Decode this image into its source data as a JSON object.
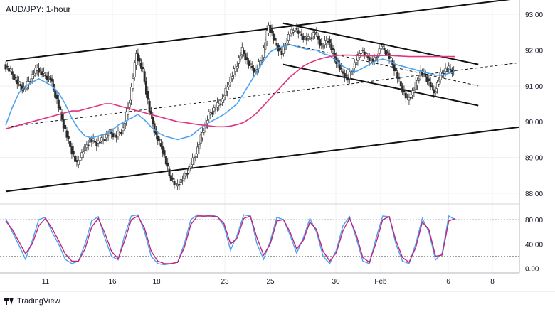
{
  "title": "AUD/JPY: 1-hour",
  "brand": "TradingView",
  "chart_data": {
    "type": "candlestick",
    "price_axis": {
      "labels": [
        "93.00",
        "92.00",
        "91.00",
        "90.00",
        "89.00",
        "88.00"
      ],
      "ticks": [
        93.0,
        92.0,
        91.0,
        90.0,
        89.0,
        88.0
      ],
      "range": [
        87.8,
        93.4
      ]
    },
    "oscillator_axis": {
      "labels": [
        "80.00",
        "40.00",
        "0.00"
      ],
      "ticks": [
        80,
        40,
        0
      ],
      "levels": [
        80,
        20
      ],
      "range": [
        -5,
        100
      ]
    },
    "x_axis": {
      "labels": [
        "11",
        "16",
        "18",
        "23",
        "25",
        "30",
        "Feb",
        "6",
        "8"
      ]
    },
    "colors": {
      "candle": "#2b2b2b",
      "ma_fast": "#4ba3f0",
      "ma_slow": "#e0347b",
      "stoch_k": "#4ba3f0",
      "stoch_d": "#c2247a",
      "trendline": "#111111",
      "grid": "#eef0f3"
    },
    "series": [
      {
        "type": "candles",
        "ohlc_close_path": [
          91.6,
          91.4,
          91.1,
          90.9,
          91.2,
          91.5,
          91.3,
          91.2,
          90.6,
          89.9,
          89.3,
          88.8,
          89.2,
          89.5,
          89.4,
          89.5,
          89.7,
          89.6,
          89.8,
          90.6,
          91.9,
          91.4,
          90.3,
          89.6,
          89.2,
          88.5,
          88.2,
          88.4,
          88.7,
          89.1,
          89.7,
          90.2,
          90.4,
          90.6,
          91.1,
          91.5,
          92.0,
          91.6,
          91.4,
          91.8,
          92.7,
          92.2,
          91.9,
          92.4,
          92.6,
          92.4,
          92.3,
          92.5,
          92.1,
          92.3,
          91.8,
          91.4,
          91.2,
          91.6,
          92.0,
          91.8,
          91.7,
          92.1,
          91.9,
          91.5,
          91.0,
          90.6,
          90.9,
          91.4,
          91.2,
          90.8,
          91.3,
          91.5,
          91.4
        ]
      },
      {
        "type": "ma",
        "role": "ma_fast",
        "values": [
          89.9,
          90.4,
          90.8,
          91.0,
          91.1,
          91.2,
          91.1,
          91.0,
          90.8,
          90.5,
          90.1,
          89.8,
          89.6,
          89.55,
          89.6,
          89.65,
          89.75,
          89.9,
          90.0,
          90.1,
          90.2,
          90.05,
          89.85,
          89.7,
          89.6,
          89.55,
          89.5,
          89.55,
          89.6,
          89.75,
          89.9,
          90.0,
          90.1,
          90.2,
          90.35,
          90.5,
          90.8,
          91.1,
          91.4,
          91.7,
          91.95,
          92.05,
          92.1,
          92.15,
          92.1,
          92.05,
          92.0,
          92.0,
          91.9,
          91.85,
          91.7,
          91.55,
          91.45,
          91.4,
          91.5,
          91.6,
          91.7,
          91.75,
          91.7,
          91.6,
          91.55,
          91.5,
          91.45,
          91.4,
          91.35,
          91.3,
          91.3,
          91.35,
          91.4
        ]
      },
      {
        "type": "ma",
        "role": "ma_slow",
        "values": [
          89.8,
          89.85,
          89.9,
          89.95,
          90.0,
          90.05,
          90.1,
          90.15,
          90.2,
          90.25,
          90.3,
          90.3,
          90.35,
          90.4,
          90.45,
          90.5,
          90.5,
          90.45,
          90.4,
          90.35,
          90.3,
          90.25,
          90.2,
          90.15,
          90.1,
          90.05,
          90.0,
          89.98,
          89.95,
          89.92,
          89.9,
          89.88,
          89.86,
          89.86,
          89.88,
          89.92,
          89.98,
          90.1,
          90.25,
          90.45,
          90.65,
          90.85,
          91.05,
          91.25,
          91.4,
          91.55,
          91.65,
          91.72,
          91.78,
          91.82,
          91.85,
          91.86,
          91.86,
          91.85,
          91.84,
          91.84,
          91.84,
          91.85,
          91.85,
          91.84,
          91.83,
          91.82,
          91.82,
          91.82,
          91.82,
          91.82,
          91.82,
          91.82,
          91.82
        ]
      },
      {
        "type": "stoch",
        "role": "stoch_k",
        "values": [
          82,
          60,
          38,
          15,
          45,
          80,
          84,
          60,
          40,
          15,
          8,
          12,
          40,
          78,
          85,
          50,
          20,
          14,
          55,
          86,
          88,
          60,
          20,
          8,
          6,
          8,
          10,
          40,
          80,
          88,
          85,
          88,
          85,
          70,
          30,
          55,
          88,
          86,
          40,
          15,
          45,
          84,
          80,
          55,
          25,
          50,
          82,
          60,
          20,
          8,
          30,
          70,
          85,
          50,
          12,
          8,
          50,
          86,
          85,
          40,
          12,
          8,
          40,
          82,
          60,
          14,
          25,
          86,
          80
        ]
      },
      {
        "type": "stoch",
        "role": "stoch_d",
        "values": [
          78,
          64,
          44,
          24,
          40,
          70,
          82,
          66,
          46,
          24,
          12,
          12,
          32,
          68,
          82,
          58,
          28,
          16,
          46,
          80,
          86,
          66,
          28,
          12,
          8,
          8,
          10,
          34,
          72,
          86,
          86,
          86,
          85,
          74,
          40,
          50,
          82,
          86,
          50,
          22,
          40,
          78,
          80,
          60,
          32,
          46,
          76,
          64,
          28,
          12,
          26,
          62,
          82,
          56,
          18,
          10,
          42,
          80,
          85,
          46,
          18,
          10,
          34,
          76,
          64,
          20,
          22,
          78,
          82
        ]
      }
    ],
    "annotations": [
      {
        "type": "channel_upper",
        "from": [
          0,
          91.7
        ],
        "to": [
          1,
          93.45
        ]
      },
      {
        "type": "channel_mid",
        "from": [
          0,
          89.85
        ],
        "to": [
          1,
          91.65
        ],
        "style": "dashed"
      },
      {
        "type": "channel_lower",
        "from": [
          0,
          88.05
        ],
        "to": [
          1,
          89.85
        ]
      },
      {
        "type": "descending_upper",
        "from": [
          0.54,
          92.75
        ],
        "to": [
          0.92,
          91.6
        ]
      },
      {
        "type": "descending_mid",
        "from": [
          0.54,
          92.2
        ],
        "to": [
          0.92,
          91.0
        ],
        "style": "dashed"
      },
      {
        "type": "descending_lower",
        "from": [
          0.54,
          91.6
        ],
        "to": [
          0.92,
          90.45
        ]
      }
    ]
  }
}
